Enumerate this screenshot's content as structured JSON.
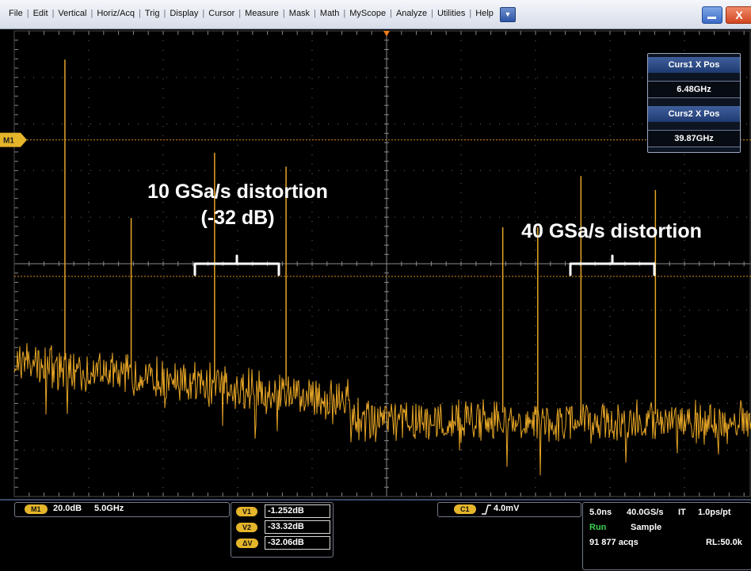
{
  "menubar": {
    "items": [
      "File",
      "Edit",
      "Vertical",
      "Horiz/Acq",
      "Trig",
      "Display",
      "Cursor",
      "Measure",
      "Mask",
      "Math",
      "MyScope",
      "Analyze",
      "Utilities",
      "Help"
    ],
    "dropdown_icon": "triangle-down-icon",
    "minimize_icon": "minimize-icon",
    "close_label": "X"
  },
  "cursor_readout": {
    "curs1_label": "Curs1 X Pos",
    "curs1_value": "6.48GHz",
    "curs2_label": "Curs2 X Pos",
    "curs2_value": "39.87GHz"
  },
  "annotations": {
    "left_line1": "10 GSa/s distortion",
    "left_line2": "(-32 dB)",
    "right": "40 GSa/s distortion"
  },
  "markers": {
    "m1_label": "M1"
  },
  "bottom_bar": {
    "math_badge": "M1",
    "math_scale": "20.0dB",
    "math_center": "5.0GHz",
    "v1_badge": "V1",
    "v1_value": "-1.252dB",
    "v2_badge": "V2",
    "v2_value": "-33.32dB",
    "dv_badge": "ΔV",
    "dv_value": "-32.06dB",
    "trigger_badge": "C1",
    "trigger_icon": "rising-edge-icon",
    "trigger_level": "4.0mV",
    "horiz_scale": "5.0ns",
    "sample_rate": "40.0GS/s",
    "it_label": "IT",
    "time_per_pt": "1.0ps/pt",
    "run_state": "Run",
    "acq_mode": "Sample",
    "acq_count": "91 877 acqs",
    "record_length": "RL:50.0k"
  },
  "colors": {
    "trace": "#e6a526",
    "grid": "#6b6b6b",
    "accent_blue": "#2d55a6",
    "run_green": "#39d353"
  },
  "spectrum_spurs": {
    "unit": "div",
    "items": [
      {
        "freq_div": 0.68,
        "level_div": 4.4
      },
      {
        "freq_div": 2.69,
        "level_div": 2.4
      },
      {
        "freq_div": 3.65,
        "level_div": 2.1
      },
      {
        "freq_div": 7.61,
        "level_div": 1.9
      },
      {
        "freq_div": 8.61,
        "level_div": 1.6
      },
      {
        "freq_div": 1.57,
        "level_div": 1.0
      },
      {
        "freq_div": 6.56,
        "level_div": 0.8
      },
      {
        "freq_div": 7.03,
        "level_div": 0.8
      }
    ]
  }
}
